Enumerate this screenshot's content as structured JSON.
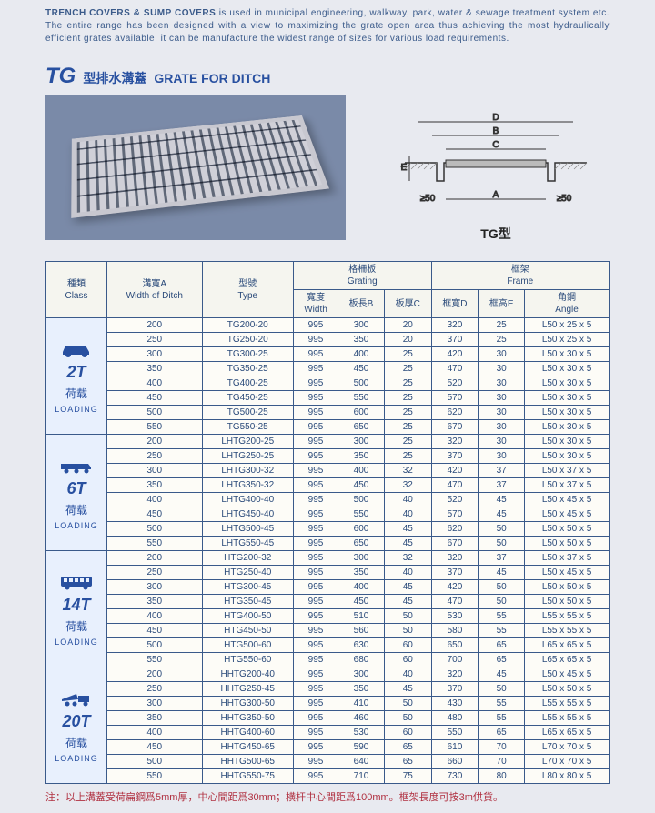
{
  "intro": {
    "bold": "TRENCH COVERS & SUMP COVERS",
    "rest": " is used in municipal engineering, walkway, park, water & sewage treatment system etc. The entire range has been designed with a view to maximizing the grate open area thus achieving the most hydraulically efficient grates available, it can be manufacture the widest range of sizes for various load requirements."
  },
  "title": {
    "big": "TG",
    "cn": "型排水溝蓋",
    "en": "GRATE FOR DITCH"
  },
  "diagram": {
    "label": "TG型",
    "dim50a": "≥50",
    "dim50b": "≥50"
  },
  "headers": {
    "class": "種類\nClass",
    "widthDitch": "溝寬A\nWidth of Ditch",
    "type": "型號\nType",
    "grating": "格柵板\nGrating",
    "frame": "框架\nFrame",
    "width": "寬度\nWidth",
    "lenB": "板長B",
    "thkC": "板厚C",
    "frmD": "框寬D",
    "frmE": "框高E",
    "angle": "角鋼\nAngle"
  },
  "classes": [
    {
      "t": "2T",
      "cn": "荷载",
      "en": "LOADING",
      "icon": "car",
      "rows": [
        [
          "200",
          "TG200-20",
          "995",
          "300",
          "20",
          "320",
          "25",
          "L50 x 25 x 5"
        ],
        [
          "250",
          "TG250-20",
          "995",
          "350",
          "20",
          "370",
          "25",
          "L50 x 25 x 5"
        ],
        [
          "300",
          "TG300-25",
          "995",
          "400",
          "25",
          "420",
          "30",
          "L50 x 30 x 5"
        ],
        [
          "350",
          "TG350-25",
          "995",
          "450",
          "25",
          "470",
          "30",
          "L50 x 30 x 5"
        ],
        [
          "400",
          "TG400-25",
          "995",
          "500",
          "25",
          "520",
          "30",
          "L50 x 30 x 5"
        ],
        [
          "450",
          "TG450-25",
          "995",
          "550",
          "25",
          "570",
          "30",
          "L50 x 30 x 5"
        ],
        [
          "500",
          "TG500-25",
          "995",
          "600",
          "25",
          "620",
          "30",
          "L50 x 30 x 5"
        ],
        [
          "550",
          "TG550-25",
          "995",
          "650",
          "25",
          "670",
          "30",
          "L50 x 30 x 5"
        ]
      ]
    },
    {
      "t": "6T",
      "cn": "荷载",
      "en": "LOADING",
      "icon": "truck",
      "rows": [
        [
          "200",
          "LHTG200-25",
          "995",
          "300",
          "25",
          "320",
          "30",
          "L50 x 30 x 5"
        ],
        [
          "250",
          "LHTG250-25",
          "995",
          "350",
          "25",
          "370",
          "30",
          "L50 x 30 x 5"
        ],
        [
          "300",
          "LHTG300-32",
          "995",
          "400",
          "32",
          "420",
          "37",
          "L50 x 37 x 5"
        ],
        [
          "350",
          "LHTG350-32",
          "995",
          "450",
          "32",
          "470",
          "37",
          "L50 x 37 x 5"
        ],
        [
          "400",
          "LHTG400-40",
          "995",
          "500",
          "40",
          "520",
          "45",
          "L50 x 45 x 5"
        ],
        [
          "450",
          "LHTG450-40",
          "995",
          "550",
          "40",
          "570",
          "45",
          "L50 x 45 x 5"
        ],
        [
          "500",
          "LHTG500-45",
          "995",
          "600",
          "45",
          "620",
          "50",
          "L50 x 50 x 5"
        ],
        [
          "550",
          "LHTG550-45",
          "995",
          "650",
          "45",
          "670",
          "50",
          "L50 x 50 x 5"
        ]
      ]
    },
    {
      "t": "14T",
      "cn": "荷载",
      "en": "LOADING",
      "icon": "bus",
      "rows": [
        [
          "200",
          "HTG200-32",
          "995",
          "300",
          "32",
          "320",
          "37",
          "L50 x 37 x 5"
        ],
        [
          "250",
          "HTG250-40",
          "995",
          "350",
          "40",
          "370",
          "45",
          "L50 x 45 x 5"
        ],
        [
          "300",
          "HTG300-45",
          "995",
          "400",
          "45",
          "420",
          "50",
          "L50 x 50 x 5"
        ],
        [
          "350",
          "HTG350-45",
          "995",
          "450",
          "45",
          "470",
          "50",
          "L50 x 50 x 5"
        ],
        [
          "400",
          "HTG400-50",
          "995",
          "510",
          "50",
          "530",
          "55",
          "L55 x 55 x 5"
        ],
        [
          "450",
          "HTG450-50",
          "995",
          "560",
          "50",
          "580",
          "55",
          "L55 x 55 x 5"
        ],
        [
          "500",
          "HTG500-60",
          "995",
          "630",
          "60",
          "650",
          "65",
          "L65 x 65 x 5"
        ],
        [
          "550",
          "HTG550-60",
          "995",
          "680",
          "60",
          "700",
          "65",
          "L65 x 65 x 5"
        ]
      ]
    },
    {
      "t": "20T",
      "cn": "荷载",
      "en": "LOADING",
      "icon": "dump",
      "rows": [
        [
          "200",
          "HHTG200-40",
          "995",
          "300",
          "40",
          "320",
          "45",
          "L50 x 45 x 5"
        ],
        [
          "250",
          "HHTG250-45",
          "995",
          "350",
          "45",
          "370",
          "50",
          "L50 x 50 x 5"
        ],
        [
          "300",
          "HHTG300-50",
          "995",
          "410",
          "50",
          "430",
          "55",
          "L55 x 55 x 5"
        ],
        [
          "350",
          "HHTG350-50",
          "995",
          "460",
          "50",
          "480",
          "55",
          "L55 x 55 x 5"
        ],
        [
          "400",
          "HHTG400-60",
          "995",
          "530",
          "60",
          "550",
          "65",
          "L65 x 65 x 5"
        ],
        [
          "450",
          "HHTG450-65",
          "995",
          "590",
          "65",
          "610",
          "70",
          "L70 x 70 x 5"
        ],
        [
          "500",
          "HHTG500-65",
          "995",
          "640",
          "65",
          "660",
          "70",
          "L70 x 70 x 5"
        ],
        [
          "550",
          "HHTG550-75",
          "995",
          "710",
          "75",
          "730",
          "80",
          "L80 x 80 x 5"
        ]
      ]
    }
  ],
  "footnote": "注：以上溝蓋受荷扁鋼爲5mm厚，中心間距爲30mm；横杆中心間距爲100mm。框架長度可按3m供貨。",
  "colors": {
    "border": "#3a5a8a",
    "text": "#2a4a7a",
    "accent": "#2850a0",
    "classBg": "#e8f0fd",
    "note": "#b03040"
  }
}
